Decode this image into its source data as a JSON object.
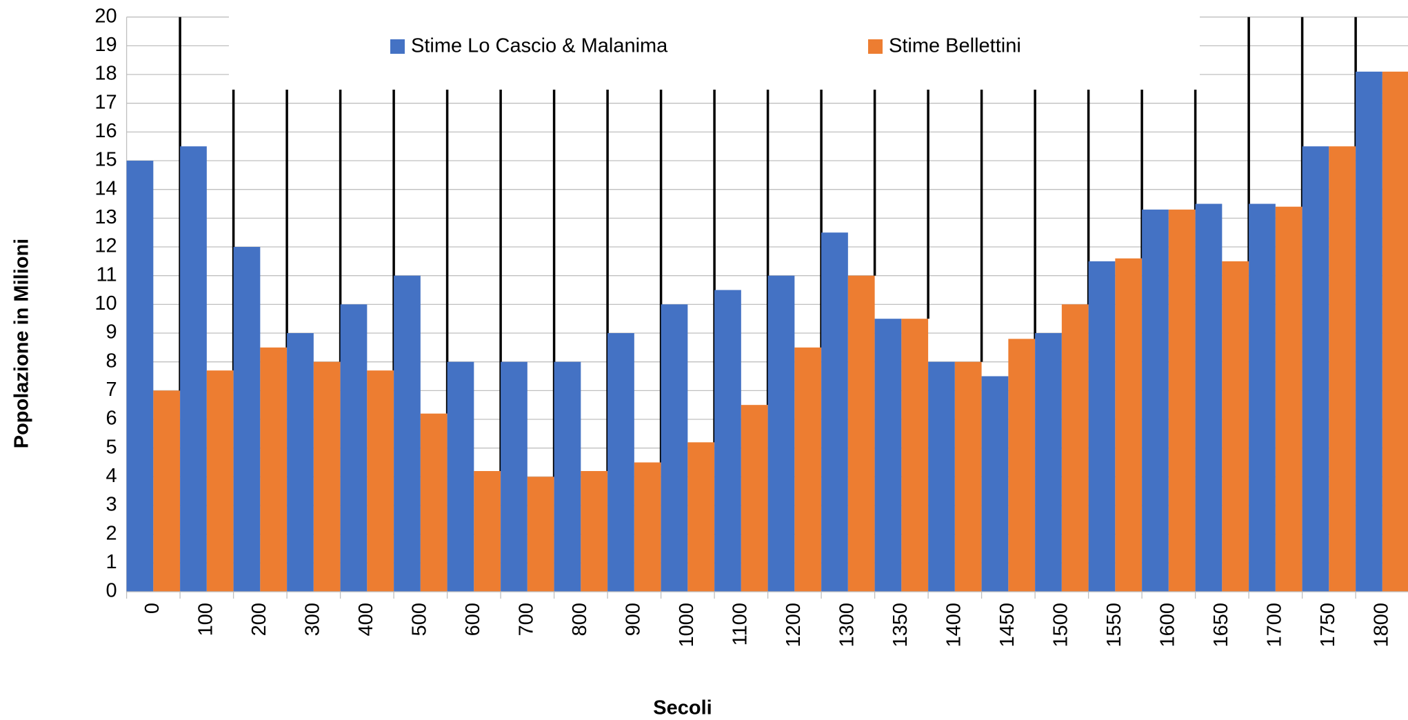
{
  "chart_data": {
    "type": "bar",
    "xlabel": "Secoli",
    "ylabel": "Popolazione in Milioni",
    "categories": [
      "0",
      "100",
      "200",
      "300",
      "400",
      "500",
      "600",
      "700",
      "800",
      "900",
      "1000",
      "1100",
      "1200",
      "1300",
      "1350",
      "1400",
      "1450",
      "1500",
      "1550",
      "1600",
      "1650",
      "1700",
      "1750",
      "1800"
    ],
    "series": [
      {
        "name": "Stime Lo Cascio & Malanima",
        "color": "#4472c4",
        "values": [
          15,
          15.5,
          12,
          9,
          10,
          11,
          8,
          8,
          8,
          9,
          10,
          10.5,
          11,
          12.5,
          9.5,
          8,
          7.5,
          9,
          11.5,
          13.3,
          13.5,
          13.5,
          15.5,
          18.1
        ]
      },
      {
        "name": "Stime Bellettini",
        "color": "#ed7d31",
        "values": [
          7,
          7.7,
          8.5,
          8,
          7.7,
          6.2,
          4.2,
          4,
          4.2,
          4.5,
          5.2,
          6.5,
          8.5,
          11,
          9.5,
          8,
          8.8,
          10,
          11.6,
          13.3,
          11.5,
          13.4,
          15.5,
          18.1
        ]
      }
    ],
    "ylim": [
      0,
      20
    ],
    "yticks": [
      0,
      1,
      2,
      3,
      4,
      5,
      6,
      7,
      8,
      9,
      10,
      11,
      12,
      13,
      14,
      15,
      16,
      17,
      18,
      19,
      20
    ],
    "grid": true,
    "legend": "top"
  }
}
